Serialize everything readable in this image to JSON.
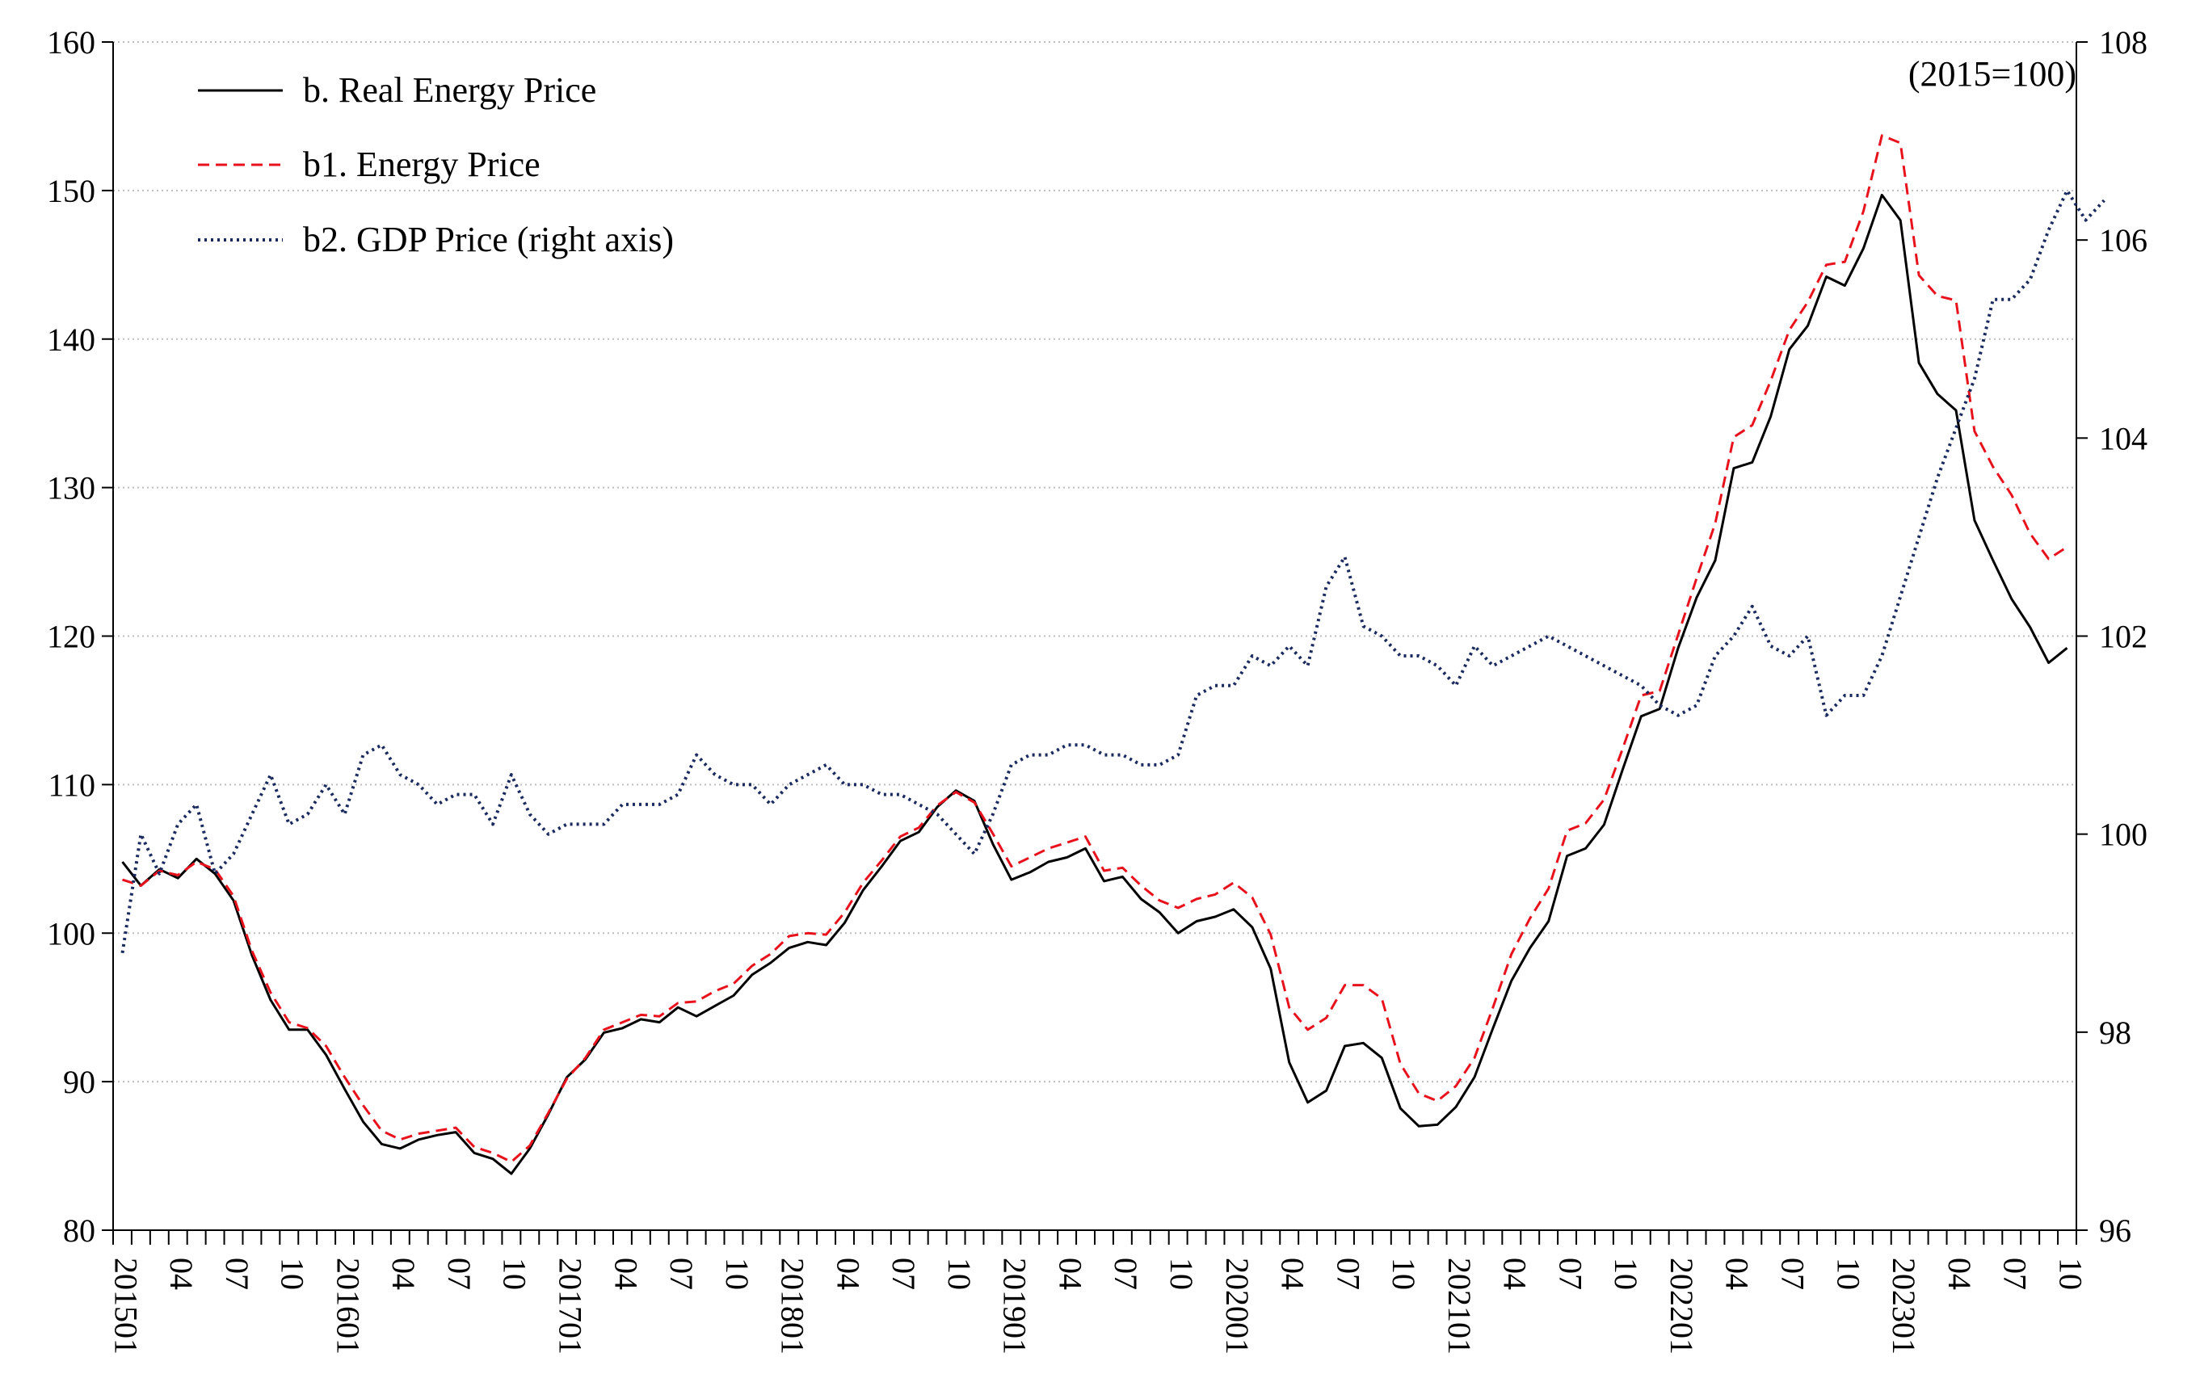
{
  "chart_data": {
    "type": "line",
    "title": "",
    "note": "(2015=100)",
    "xlabel": "",
    "ylabel": "",
    "grid": true,
    "legend_position": "top-left",
    "x_start": "2015-01",
    "x_tick_labels": [
      "201501",
      "04",
      "07",
      "10",
      "201601",
      "04",
      "07",
      "10",
      "201701",
      "04",
      "07",
      "10",
      "201801",
      "04",
      "07",
      "10",
      "201901",
      "04",
      "07",
      "10",
      "202001",
      "04",
      "07",
      "10",
      "202101",
      "04",
      "07",
      "10",
      "202201",
      "04",
      "07",
      "10",
      "202301",
      "04",
      "07",
      "10"
    ],
    "y_left": {
      "min": 80,
      "max": 160,
      "step": 10,
      "tick_labels": [
        "80",
        "90",
        "100",
        "110",
        "120",
        "130",
        "140",
        "150",
        "160"
      ]
    },
    "y_right": {
      "min": 96,
      "max": 108,
      "step": 2,
      "tick_labels": [
        "96",
        "98",
        "100",
        "102",
        "104",
        "106",
        "108"
      ]
    },
    "series": [
      {
        "name": "b. Real Energy Price",
        "axis": "left",
        "style": "solid",
        "color": "#000000",
        "values": [
          104.8,
          103.2,
          104.3,
          103.7,
          105.0,
          104.0,
          102.2,
          98.5,
          95.5,
          93.5,
          93.5,
          91.8,
          89.5,
          87.3,
          85.8,
          85.5,
          86.1,
          86.4,
          86.6,
          85.2,
          84.8,
          83.8,
          85.5,
          87.8,
          90.3,
          91.5,
          93.3,
          93.6,
          94.2,
          94.0,
          95.0,
          94.4,
          95.1,
          95.8,
          97.2,
          98.0,
          99.0,
          99.4,
          99.2,
          100.7,
          102.9,
          104.5,
          106.2,
          106.8,
          108.5,
          109.6,
          108.9,
          106.0,
          103.6,
          104.1,
          104.8,
          105.1,
          105.7,
          103.5,
          103.8,
          102.3,
          101.4,
          100.0,
          100.8,
          101.1,
          101.6,
          100.4,
          97.6,
          91.3,
          88.6,
          89.4,
          92.4,
          92.6,
          91.6,
          88.2,
          87.0,
          87.1,
          88.3,
          90.3,
          93.6,
          96.8,
          99.0,
          100.8,
          105.2,
          105.7,
          107.3,
          111.0,
          114.6,
          115.1,
          119.2,
          122.6,
          125.1,
          131.3,
          131.7,
          134.8,
          139.3,
          140.9,
          144.2,
          143.6,
          146.1,
          149.7,
          148.0,
          138.4,
          136.3,
          135.2,
          127.8,
          125.1,
          122.5,
          120.6,
          118.2,
          119.2
        ]
      },
      {
        "name": "b1. Energy Price",
        "axis": "left",
        "style": "dashed",
        "color": "#e8121c",
        "values": [
          103.6,
          103.2,
          104.2,
          103.9,
          104.8,
          104.3,
          102.5,
          98.8,
          96.0,
          94.0,
          93.6,
          92.4,
          90.3,
          88.4,
          86.7,
          86.1,
          86.5,
          86.7,
          86.9,
          85.6,
          85.2,
          84.6,
          85.7,
          87.9,
          90.2,
          91.6,
          93.5,
          94.0,
          94.5,
          94.4,
          95.3,
          95.4,
          96.1,
          96.6,
          97.8,
          98.6,
          99.8,
          100.0,
          99.9,
          101.4,
          103.4,
          104.9,
          106.5,
          107.1,
          108.6,
          109.5,
          108.8,
          106.7,
          104.5,
          105.1,
          105.7,
          106.1,
          106.5,
          104.2,
          104.4,
          103.2,
          102.2,
          101.7,
          102.3,
          102.6,
          103.4,
          102.4,
          99.9,
          95.0,
          93.5,
          94.3,
          96.5,
          96.5,
          95.6,
          91.2,
          89.2,
          88.7,
          89.7,
          91.6,
          95.0,
          98.6,
          101.0,
          103.0,
          106.9,
          107.4,
          109.0,
          112.4,
          116.0,
          116.3,
          120.1,
          123.9,
          127.6,
          133.4,
          134.2,
          137.2,
          140.6,
          142.5,
          145.0,
          145.2,
          148.6,
          153.7,
          153.2,
          144.3,
          142.9,
          142.6,
          133.8,
          131.4,
          129.5,
          126.9,
          125.2,
          126.0
        ]
      },
      {
        "name": "b2. GDP Price (right axis)",
        "axis": "right",
        "style": "dotted",
        "color": "#1a2a5e",
        "values": [
          98.8,
          100.0,
          99.6,
          100.1,
          100.3,
          99.6,
          99.8,
          100.2,
          100.6,
          100.1,
          100.2,
          100.5,
          100.2,
          100.8,
          100.9,
          100.6,
          100.5,
          100.3,
          100.4,
          100.4,
          100.1,
          100.6,
          100.2,
          100.0,
          100.1,
          100.1,
          100.1,
          100.3,
          100.3,
          100.3,
          100.4,
          100.8,
          100.6,
          100.5,
          100.5,
          100.3,
          100.5,
          100.6,
          100.7,
          100.5,
          100.5,
          100.4,
          100.4,
          100.3,
          100.2,
          100.0,
          99.8,
          100.2,
          100.7,
          100.8,
          100.8,
          100.9,
          100.9,
          100.8,
          100.8,
          100.7,
          100.7,
          100.8,
          101.4,
          101.5,
          101.5,
          101.8,
          101.7,
          101.9,
          101.7,
          102.5,
          102.8,
          102.1,
          102.0,
          101.8,
          101.8,
          101.7,
          101.5,
          101.9,
          101.7,
          101.8,
          101.9,
          102.0,
          101.9,
          101.8,
          101.7,
          101.6,
          101.5,
          101.3,
          101.2,
          101.3,
          101.8,
          102.0,
          102.3,
          101.9,
          101.8,
          102.0,
          101.2,
          101.4,
          101.4,
          101.8,
          102.4,
          103.0,
          103.6,
          104.1,
          104.6,
          105.4,
          105.4,
          105.6,
          106.1,
          106.5,
          106.2,
          106.4
        ]
      }
    ]
  }
}
